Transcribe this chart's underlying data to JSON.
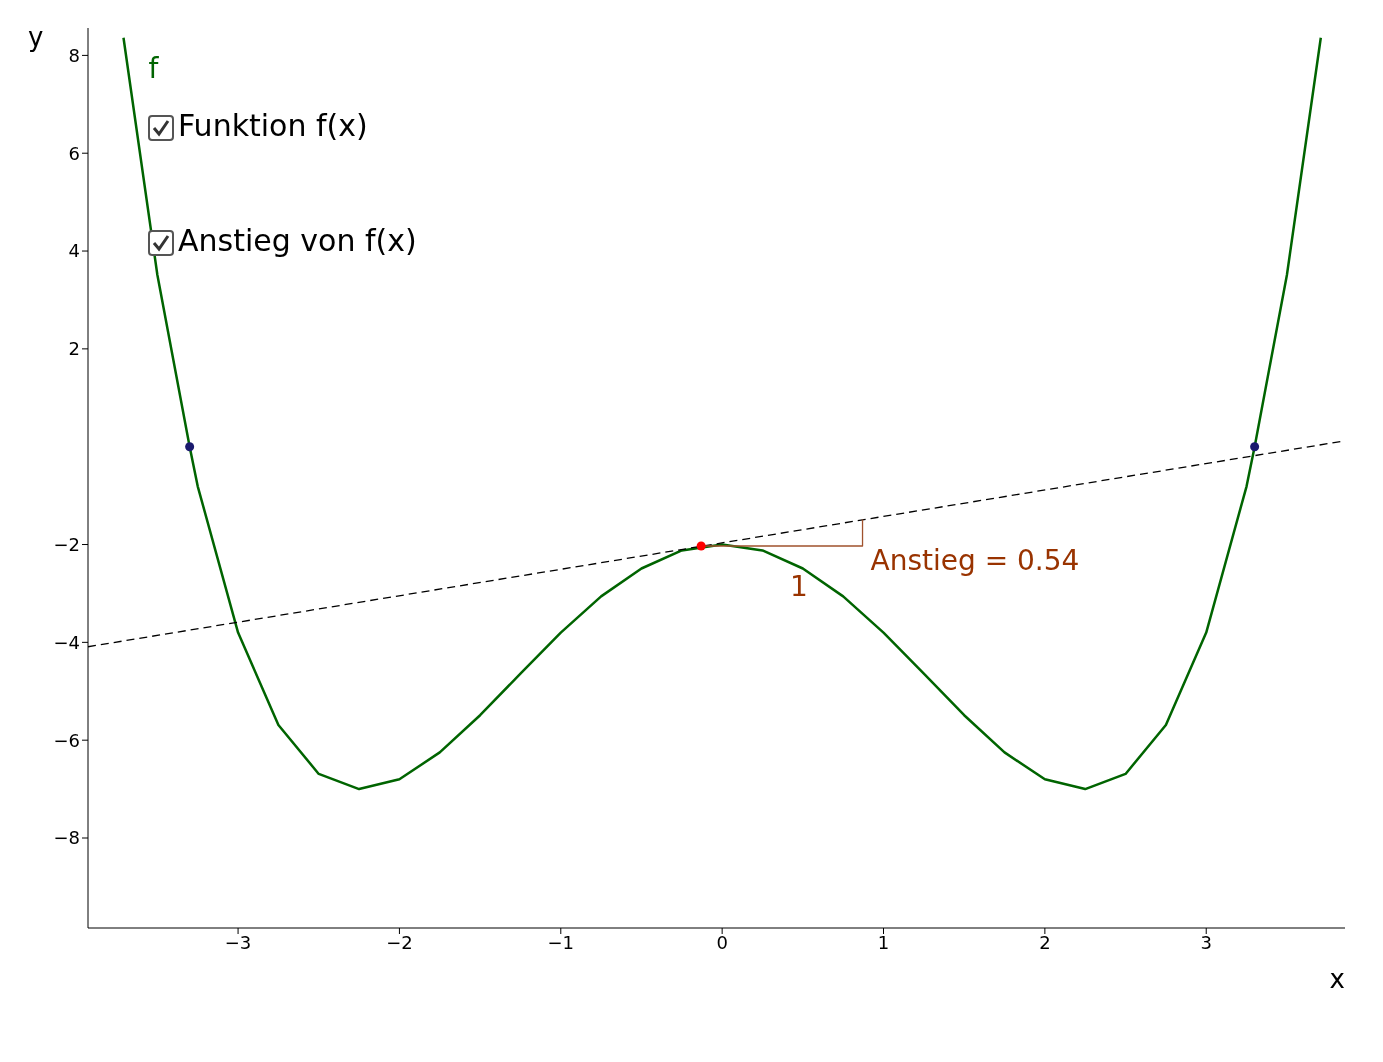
{
  "chart_data": {
    "type": "line",
    "xlabel": "x",
    "ylabel": "y",
    "xlim": [
      -3.93,
      3.86
    ],
    "ylim": [
      -9.84,
      8.56
    ],
    "xticks": [
      -3,
      -2,
      -1,
      0,
      1,
      2,
      3
    ],
    "yticks": [
      -8,
      -6,
      -4,
      -2,
      2,
      4,
      6,
      8
    ],
    "grid": false,
    "legend": false,
    "marker": "none",
    "series": [
      {
        "name": "f",
        "color": "#006400",
        "x": [
          -3.71,
          -3.5,
          -3.3,
          -3.25,
          -3,
          -2.75,
          -2.5,
          -2.25,
          -2,
          -1.75,
          -1.5,
          -1.25,
          -1,
          -0.75,
          -0.5,
          -0.25,
          0,
          0.25,
          0.5,
          0.75,
          1,
          1.25,
          1.5,
          1.75,
          2,
          2.25,
          2.5,
          2.75,
          3,
          3.25,
          3.3,
          3.5,
          3.71
        ],
        "values": [
          8.36,
          3.51,
          0,
          -0.81,
          -3.8,
          -5.69,
          -6.69,
          -7,
          -6.8,
          -6.25,
          -5.49,
          -4.64,
          -3.8,
          -3.06,
          -2.49,
          -2.12,
          -2,
          -2.12,
          -2.49,
          -3.06,
          -3.8,
          -4.64,
          -5.49,
          -6.25,
          -6.8,
          -7,
          -6.69,
          -5.69,
          -3.8,
          -0.81,
          0,
          3.51,
          8.36
        ]
      },
      {
        "type": "line",
        "color": "#000000",
        "line_style": "dashed",
        "x": [
          -3.93,
          3.86
        ],
        "values": [
          -4.09,
          0.12
        ]
      },
      {
        "type": "line",
        "color": "#a0522d",
        "x": [
          -0.13,
          0.87,
          0.87
        ],
        "values": [
          -2.03,
          -2.03,
          -1.49
        ]
      },
      {
        "type": "scatter",
        "color": "#1a1a6e",
        "marker": "circle",
        "x": [
          -3.3,
          3.3
        ],
        "values": [
          0,
          0
        ]
      },
      {
        "type": "scatter",
        "color": "#ff0000",
        "marker": "circle",
        "x": [
          -0.13
        ],
        "values": [
          -2.03
        ]
      }
    ],
    "annotations": [
      {
        "text": "Anstieg = 0.54",
        "x": 0.87,
        "y": -2.03
      },
      "1",
      "Funktion f(x)",
      "Anstieg von f(x)"
    ]
  }
}
